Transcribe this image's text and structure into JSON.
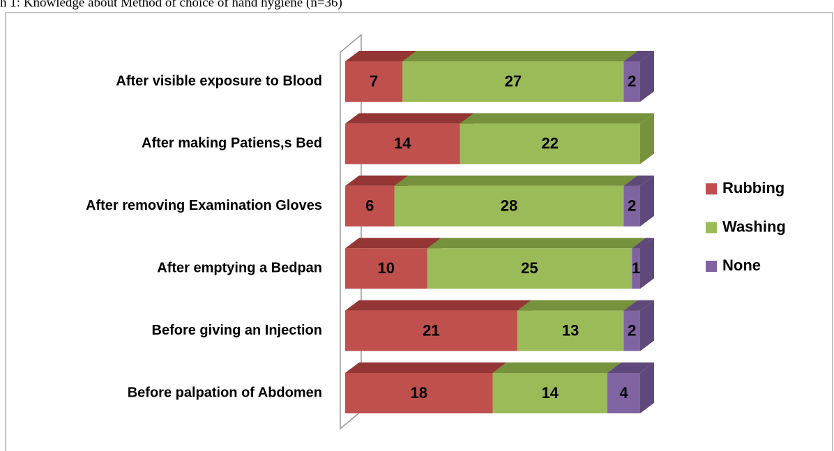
{
  "chart_data": {
    "type": "bar3d_stacked_horizontal",
    "title": "h 1: Knowledge about Method of choice of hand hygiene (n=36)",
    "categories": [
      "After visible exposure to Blood",
      "After making Patiens,s Bed",
      "After removing Examination Gloves",
      "After emptying a Bedpan",
      "Before giving an Injection",
      "Before palpation of Abdomen"
    ],
    "series": [
      {
        "name": "Rubbing",
        "color": "#c0504d",
        "top_color": "#943634",
        "values": [
          7,
          14,
          6,
          10,
          21,
          18
        ]
      },
      {
        "name": "Washing",
        "color": "#9bbb59",
        "top_color": "#76923c",
        "values": [
          27,
          22,
          28,
          25,
          13,
          14
        ]
      },
      {
        "name": "None",
        "color": "#8064a2",
        "top_color": "#5f497a",
        "values": [
          2,
          null,
          2,
          1,
          2,
          4
        ]
      }
    ],
    "xlim": [
      0,
      36
    ]
  }
}
